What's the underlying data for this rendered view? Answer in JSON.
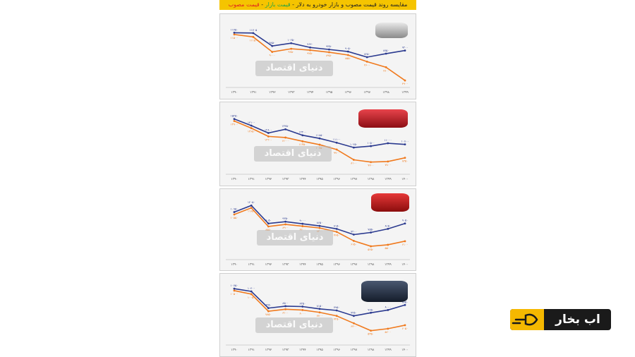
{
  "header": {
    "title": "مقایسه روند قیمت مصوب و بازار خودرو به دلار",
    "legend_market": "قیمت بازار",
    "legend_official": "قیمت مصوب",
    "legend_sep": " - "
  },
  "watermark": "دنیای اقتصاد",
  "logo": {
    "text": "اب بخار",
    "accent": "#f5b800",
    "background": "#1a1a1a"
  },
  "colors": {
    "market": "#2b3a8f",
    "official": "#f07a1e",
    "header_bg": "#f5c400"
  },
  "chart_data": [
    {
      "type": "line",
      "car_icon": "silver-sedan-icon",
      "categories": [
        "۱۳۹۰",
        "۱۳۹۱",
        "۱۳۹۲",
        "۱۳۹۳",
        "۱۳۹۴",
        "۱۳۹۵",
        "۱۳۹۶",
        "۱۳۹۷",
        "۱۳۹۸",
        "۱۳۹۹"
      ],
      "series": [
        {
          "key": "market",
          "values": [
            11750,
            11705,
            9850,
            10250,
            9640,
            9350,
            9050,
            8250,
            8750,
            9200
          ],
          "labels": [
            "۱۱۷۵۰",
            "۱۱۷۰۵",
            "۹۸۵۰",
            "۱۰۲۵۰",
            "۹۶۴۰",
            "۹۳۵۰",
            "۹۰۵۰",
            "۸۲۵۰",
            "۸۷۵۰",
            "۹۲۰۰"
          ]
        },
        {
          "key": "official",
          "values": [
            11500,
            11150,
            9000,
            9450,
            9250,
            8950,
            8550,
            7600,
            6800,
            4900
          ],
          "labels": [
            "۱۱۵۰۰",
            "۱۱۱۵۰",
            "۹۰۰۰",
            "۹۴۵۰",
            "۹۲۵۰",
            "۸۹۵۰",
            "۸۵۵۰",
            "۷۶۰۰",
            "۶۸۰۰",
            "۴۹۰۰"
          ]
        }
      ],
      "ylim": [
        4300,
        12600
      ]
    },
    {
      "type": "line",
      "car_icon": "red-sedan-icon",
      "categories": [
        "۱۳۹۰",
        "۱۳۹۱",
        "۱۳۹۲",
        "۱۳۹۳",
        "۱۳۹۴",
        "۱۳۹۵",
        "۱۳۹۶",
        "۱۳۹۷",
        "۱۳۹۸",
        "۱۳۹۹",
        "۱۴۰۰"
      ],
      "series": [
        {
          "key": "market",
          "values": [
            15250,
            14100,
            12800,
            13450,
            12400,
            11850,
            11100,
            10250,
            10500,
            11000,
            10800
          ],
          "labels": [
            "۱۵۲۵۰",
            "۱۴۱۰۰",
            "۱۲۸۰۰",
            "۱۳۴۵۰",
            "۱۲۴۰۰",
            "۱۱۸۵۰",
            "۱۱۱۰۰",
            "۱۰۲۵۰",
            "۱۰۵۰۰",
            "۱۱۰۰۰",
            "۱۰۸۰۰"
          ]
        },
        {
          "key": "official",
          "values": [
            14900,
            13650,
            12200,
            12000,
            11350,
            10750,
            9900,
            8100,
            7700,
            7800,
            8450
          ],
          "labels": [
            "۱۴۹۰۰",
            "۱۳۶۵۰",
            "۱۲۲۰۰",
            "۱۲۰۰۰",
            "۱۱۳۵۰",
            "۱۰۷۵۰",
            "۹۹۰۰",
            "۸۱۰۰",
            "۷۷۰۰",
            "۷۸۰۰",
            "۸۴۵۰"
          ]
        }
      ],
      "ylim": [
        6800,
        16200
      ]
    },
    {
      "type": "line",
      "car_icon": "red-hatchback-icon",
      "categories": [
        "۱۳۹۰",
        "۱۳۹۱",
        "۱۳۹۲",
        "۱۳۹۳",
        "۱۳۹۴",
        "۱۳۹۵",
        "۱۳۹۶",
        "۱۳۹۷",
        "۱۳۹۸",
        "۱۳۹۹",
        "۱۴۰۰"
      ],
      "series": [
        {
          "key": "market",
          "values": [
            10950,
            12050,
            9050,
            9350,
            9000,
            8650,
            8150,
            7200,
            7550,
            8150,
            9050
          ],
          "labels": [
            "۱۰۹۵۰",
            "۱۲۰۵۰",
            "۹۰۵۰",
            "۹۳۵۰",
            "۹۰۰۰",
            "۸۶۵۰",
            "۸۱۵۰",
            "۷۲۰۰",
            "۷۵۵۰",
            "۸۱۵۰",
            "۹۰۵۰"
          ]
        },
        {
          "key": "official",
          "values": [
            10550,
            11650,
            8550,
            8900,
            8600,
            8300,
            7650,
            6150,
            5250,
            5500,
            6100
          ],
          "labels": [
            "۱۰۵۵۰",
            "۱۱۶۵۰",
            "۸۵۵۰",
            "۸۹۰۰",
            "۸۶۰۰",
            "۸۳۰۰",
            "۷۶۵۰",
            "۶۱۵۰",
            "۵۲۵۰",
            "۵۵۰۰",
            "۶۱۰۰"
          ]
        }
      ],
      "ylim": [
        4200,
        12900
      ]
    },
    {
      "type": "line",
      "car_icon": "dark-blue-sedan-icon",
      "categories": [
        "۱۳۹۰",
        "۱۳۹۱",
        "۱۳۹۲",
        "۱۳۹۳",
        "۱۳۹۴",
        "۱۳۹۵",
        "۱۳۹۶",
        "۱۳۹۷",
        "۱۳۹۸",
        "۱۳۹۹",
        "۱۴۰۰"
      ],
      "series": [
        {
          "key": "market",
          "values": [
            10750,
            10400,
            8250,
            8500,
            8450,
            8150,
            7950,
            7250,
            7650,
            8000,
            8650
          ],
          "labels": [
            "۱۰۷۵۰",
            "۱۰۴۰۰",
            "۸۲۵۰",
            "۸۵۰۰",
            "۸۴۵۰",
            "۸۱۵۰",
            "۷۹۵۰",
            "۷۲۵۰",
            "۷۶۵۰",
            "۸۰۰۰",
            "۸۶۵۰"
          ]
        },
        {
          "key": "official",
          "values": [
            10500,
            10050,
            7850,
            8100,
            8000,
            7700,
            7250,
            6300,
            5350,
            5600,
            6050
          ],
          "labels": [
            "۱۰۵۰۰",
            "۱۰۰۵۰",
            "۷۸۵۰",
            "۸۱۰۰",
            "۸۰۰۰",
            "۷۷۰۰",
            "۷۲۵۰",
            "۶۳۰۰",
            "۵۳۵۰",
            "۵۶۰۰",
            "۶۰۵۰"
          ]
        }
      ],
      "ylim": [
        4500,
        11400
      ]
    }
  ]
}
